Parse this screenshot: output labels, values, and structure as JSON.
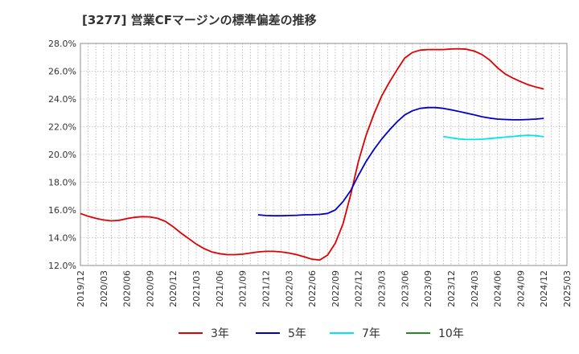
{
  "chart_data": {
    "type": "line",
    "title": "[3277]  営業CFマージンの標準偏差の推移",
    "xlabel": "",
    "ylabel": "",
    "ylim": [
      12.0,
      28.0
    ],
    "y_ticks": [
      "12.0%",
      "14.0%",
      "16.0%",
      "18.0%",
      "20.0%",
      "22.0%",
      "24.0%",
      "26.0%",
      "28.0%"
    ],
    "x_range": [
      "2019/12",
      "2025/03"
    ],
    "x_ticks": [
      "2019/12",
      "2020/03",
      "2020/06",
      "2020/09",
      "2020/12",
      "2021/03",
      "2021/06",
      "2021/09",
      "2021/12",
      "2022/03",
      "2022/06",
      "2022/09",
      "2022/12",
      "2023/03",
      "2023/06",
      "2023/09",
      "2023/12",
      "2024/03",
      "2024/06",
      "2024/09",
      "2024/12",
      "2025/03"
    ],
    "grid": true,
    "legend_position": "bottom",
    "series": [
      {
        "name": "3年",
        "color": "#e00000",
        "points": [
          [
            "2019/12",
            15.75
          ],
          [
            "2020/01",
            15.55
          ],
          [
            "2020/02",
            15.4
          ],
          [
            "2020/03",
            15.28
          ],
          [
            "2020/04",
            15.22
          ],
          [
            "2020/05",
            15.25
          ],
          [
            "2020/06",
            15.38
          ],
          [
            "2020/07",
            15.47
          ],
          [
            "2020/08",
            15.52
          ],
          [
            "2020/09",
            15.5
          ],
          [
            "2020/10",
            15.4
          ],
          [
            "2020/11",
            15.18
          ],
          [
            "2020/12",
            14.8
          ],
          [
            "2021/01",
            14.35
          ],
          [
            "2021/02",
            13.95
          ],
          [
            "2021/03",
            13.55
          ],
          [
            "2021/04",
            13.22
          ],
          [
            "2021/05",
            12.98
          ],
          [
            "2021/06",
            12.85
          ],
          [
            "2021/07",
            12.78
          ],
          [
            "2021/08",
            12.78
          ],
          [
            "2021/09",
            12.82
          ],
          [
            "2021/10",
            12.9
          ],
          [
            "2021/11",
            12.98
          ],
          [
            "2021/12",
            13.02
          ],
          [
            "2022/01",
            13.02
          ],
          [
            "2022/02",
            12.98
          ],
          [
            "2022/03",
            12.9
          ],
          [
            "2022/04",
            12.78
          ],
          [
            "2022/05",
            12.62
          ],
          [
            "2022/06",
            12.45
          ],
          [
            "2022/07",
            12.4
          ],
          [
            "2022/08",
            12.75
          ],
          [
            "2022/09",
            13.6
          ],
          [
            "2022/10",
            15.0
          ],
          [
            "2022/11",
            17.1
          ],
          [
            "2022/12",
            19.5
          ],
          [
            "2023/01",
            21.4
          ],
          [
            "2023/02",
            22.9
          ],
          [
            "2023/03",
            24.2
          ],
          [
            "2023/04",
            25.2
          ],
          [
            "2023/05",
            26.1
          ],
          [
            "2023/06",
            26.95
          ],
          [
            "2023/07",
            27.35
          ],
          [
            "2023/08",
            27.52
          ],
          [
            "2023/09",
            27.56
          ],
          [
            "2023/10",
            27.56
          ],
          [
            "2023/11",
            27.56
          ],
          [
            "2023/12",
            27.6
          ],
          [
            "2024/01",
            27.62
          ],
          [
            "2024/02",
            27.58
          ],
          [
            "2024/03",
            27.45
          ],
          [
            "2024/04",
            27.2
          ],
          [
            "2024/05",
            26.8
          ],
          [
            "2024/06",
            26.25
          ],
          [
            "2024/07",
            25.8
          ],
          [
            "2024/08",
            25.5
          ],
          [
            "2024/09",
            25.25
          ],
          [
            "2024/10",
            25.02
          ],
          [
            "2024/11",
            24.85
          ],
          [
            "2024/12",
            24.72
          ]
        ]
      },
      {
        "name": "5年",
        "color": "#0000cc",
        "points": [
          [
            "2021/11",
            15.65
          ],
          [
            "2021/12",
            15.6
          ],
          [
            "2022/01",
            15.58
          ],
          [
            "2022/02",
            15.58
          ],
          [
            "2022/03",
            15.6
          ],
          [
            "2022/04",
            15.62
          ],
          [
            "2022/05",
            15.65
          ],
          [
            "2022/06",
            15.66
          ],
          [
            "2022/07",
            15.68
          ],
          [
            "2022/08",
            15.75
          ],
          [
            "2022/09",
            16.0
          ],
          [
            "2022/10",
            16.6
          ],
          [
            "2022/11",
            17.4
          ],
          [
            "2022/12",
            18.5
          ],
          [
            "2023/01",
            19.5
          ],
          [
            "2023/02",
            20.35
          ],
          [
            "2023/03",
            21.1
          ],
          [
            "2023/04",
            21.75
          ],
          [
            "2023/05",
            22.35
          ],
          [
            "2023/06",
            22.85
          ],
          [
            "2023/07",
            23.15
          ],
          [
            "2023/08",
            23.32
          ],
          [
            "2023/09",
            23.38
          ],
          [
            "2023/10",
            23.38
          ],
          [
            "2023/11",
            23.32
          ],
          [
            "2023/12",
            23.22
          ],
          [
            "2024/01",
            23.1
          ],
          [
            "2024/02",
            22.98
          ],
          [
            "2024/03",
            22.85
          ],
          [
            "2024/04",
            22.72
          ],
          [
            "2024/05",
            22.62
          ],
          [
            "2024/06",
            22.55
          ],
          [
            "2024/07",
            22.52
          ],
          [
            "2024/08",
            22.5
          ],
          [
            "2024/09",
            22.5
          ],
          [
            "2024/10",
            22.52
          ],
          [
            "2024/11",
            22.55
          ],
          [
            "2024/12",
            22.6
          ]
        ]
      },
      {
        "name": "7年",
        "color": "#00e5ee",
        "points": [
          [
            "2023/11",
            21.3
          ],
          [
            "2023/12",
            21.2
          ],
          [
            "2024/01",
            21.12
          ],
          [
            "2024/02",
            21.08
          ],
          [
            "2024/03",
            21.08
          ],
          [
            "2024/04",
            21.1
          ],
          [
            "2024/05",
            21.15
          ],
          [
            "2024/06",
            21.2
          ],
          [
            "2024/07",
            21.25
          ],
          [
            "2024/08",
            21.3
          ],
          [
            "2024/09",
            21.35
          ],
          [
            "2024/10",
            21.38
          ],
          [
            "2024/11",
            21.35
          ],
          [
            "2024/12",
            21.28
          ]
        ]
      },
      {
        "name": "10年",
        "color": "#228b22",
        "points": []
      }
    ]
  }
}
